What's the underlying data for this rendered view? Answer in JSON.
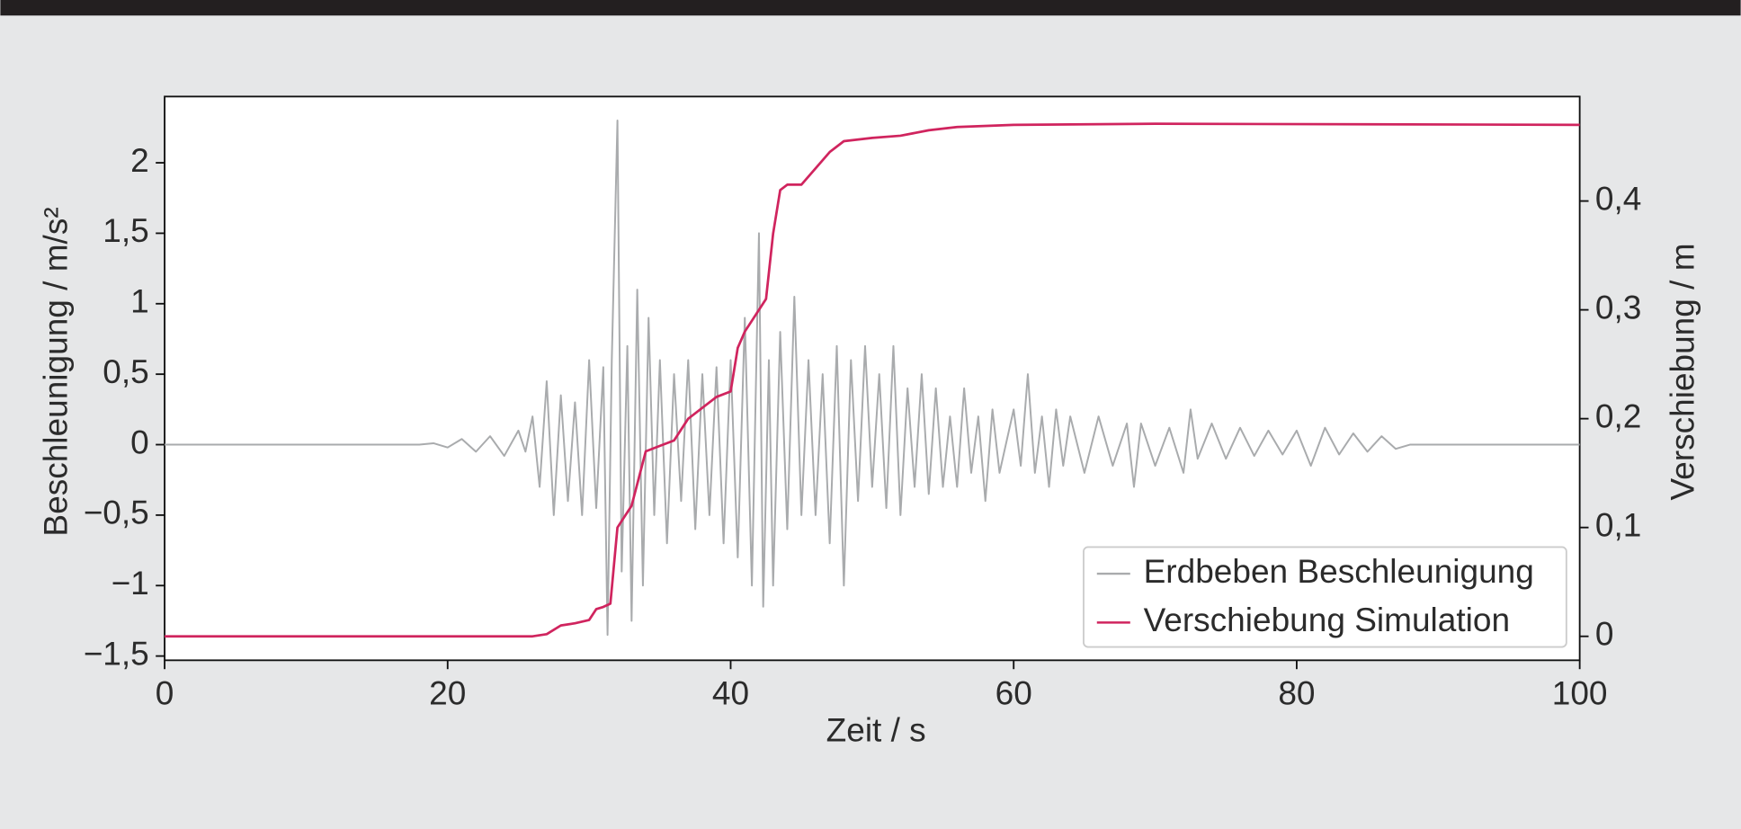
{
  "chart_data": {
    "type": "line",
    "xlabel": "Zeit / s",
    "ylabel": "Beschleunigung / m/s²",
    "y2label": "Verschiebung / m",
    "xlim": [
      0,
      100
    ],
    "xticks": [
      0,
      20,
      40,
      60,
      80,
      100
    ],
    "ylim": [
      -1.53,
      2.47
    ],
    "yticks": [
      {
        "value": -1.5,
        "label": "−1,5"
      },
      {
        "value": -1,
        "label": "−1"
      },
      {
        "value": -0.5,
        "label": "−0,5"
      },
      0,
      {
        "value": 0.5,
        "label": "0,5"
      },
      1,
      {
        "value": 1.5,
        "label": "1,5"
      },
      2
    ],
    "y2lim": [
      -0.022,
      0.496
    ],
    "y2ticks": [
      0,
      {
        "value": 0.1,
        "label": "0,1"
      },
      {
        "value": 0.2,
        "label": "0,2"
      },
      {
        "value": 0.3,
        "label": "0,3"
      },
      {
        "value": 0.4,
        "label": "0,4"
      }
    ],
    "legend": "lower right",
    "series": [
      {
        "name": "Erdbeben Beschleunigung",
        "color": "#a9abad",
        "x": [
          0,
          18,
          19,
          20,
          21,
          22,
          23,
          24,
          25,
          25.5,
          26,
          26.5,
          27,
          27.5,
          28,
          28.5,
          29,
          29.5,
          30,
          30.5,
          31,
          31.3,
          31.6,
          32,
          32.3,
          32.7,
          33,
          33.4,
          33.8,
          34.2,
          34.6,
          35,
          35.5,
          36,
          36.5,
          37,
          37.5,
          38,
          38.5,
          39,
          39.5,
          40,
          40.5,
          41,
          41.5,
          42,
          42.3,
          42.7,
          43,
          43.5,
          44,
          44.5,
          45,
          45.5,
          46,
          46.5,
          47,
          47.5,
          48,
          48.5,
          49,
          49.5,
          50,
          50.5,
          51,
          51.5,
          52,
          52.5,
          53,
          53.5,
          54,
          54.5,
          55,
          55.5,
          56,
          56.5,
          57,
          57.5,
          58,
          58.5,
          59,
          60,
          60.5,
          61,
          61.5,
          62,
          62.5,
          63,
          63.5,
          64,
          65,
          66,
          67,
          68,
          68.5,
          69,
          70,
          71,
          72,
          72.5,
          73,
          74,
          75,
          76,
          77,
          78,
          79,
          80,
          81,
          82,
          83,
          84,
          85,
          86,
          87,
          88,
          100
        ],
        "values": [
          0,
          0,
          0.01,
          -0.02,
          0.04,
          -0.05,
          0.06,
          -0.08,
          0.1,
          -0.05,
          0.2,
          -0.3,
          0.45,
          -0.5,
          0.35,
          -0.4,
          0.3,
          -0.5,
          0.6,
          -0.45,
          0.55,
          -1.35,
          0.6,
          2.3,
          -0.9,
          0.7,
          -1.25,
          1.1,
          -1.0,
          0.9,
          -0.5,
          0.6,
          -0.7,
          0.5,
          -0.4,
          0.6,
          -0.6,
          0.5,
          -0.5,
          0.55,
          -0.7,
          0.6,
          -0.8,
          0.9,
          -1.0,
          1.5,
          -1.15,
          0.6,
          -1.0,
          0.8,
          -0.6,
          1.05,
          -0.5,
          0.6,
          -0.5,
          0.5,
          -0.7,
          0.7,
          -1.0,
          0.6,
          -0.4,
          0.7,
          -0.3,
          0.5,
          -0.45,
          0.7,
          -0.5,
          0.4,
          -0.3,
          0.5,
          -0.35,
          0.4,
          -0.3,
          0.2,
          -0.3,
          0.4,
          -0.2,
          0.2,
          -0.4,
          0.25,
          -0.2,
          0.25,
          -0.15,
          0.5,
          -0.2,
          0.2,
          -0.3,
          0.25,
          -0.15,
          0.2,
          -0.2,
          0.2,
          -0.15,
          0.15,
          -0.3,
          0.15,
          -0.15,
          0.12,
          -0.2,
          0.25,
          -0.1,
          0.15,
          -0.1,
          0.12,
          -0.08,
          0.1,
          -0.07,
          0.1,
          -0.15,
          0.12,
          -0.07,
          0.08,
          -0.05,
          0.06,
          -0.03,
          0,
          0
        ]
      },
      {
        "name": "Verschiebung Simulation",
        "color": "#d0245e",
        "axis": "y2",
        "x": [
          0,
          26,
          27,
          28,
          29,
          30,
          30.5,
          31,
          31.5,
          32,
          33,
          34,
          35,
          36,
          37,
          38,
          39,
          40,
          40.5,
          41,
          42,
          42.5,
          43,
          43.5,
          44,
          45,
          46,
          47,
          48,
          50,
          52,
          54,
          56,
          60,
          70,
          100
        ],
        "values": [
          0,
          0,
          0.002,
          0.01,
          0.012,
          0.015,
          0.025,
          0.027,
          0.03,
          0.1,
          0.12,
          0.17,
          0.175,
          0.18,
          0.2,
          0.21,
          0.22,
          0.225,
          0.265,
          0.28,
          0.3,
          0.31,
          0.37,
          0.41,
          0.415,
          0.415,
          0.43,
          0.445,
          0.455,
          0.458,
          0.46,
          0.465,
          0.468,
          0.47,
          0.471,
          0.47
        ]
      }
    ]
  }
}
